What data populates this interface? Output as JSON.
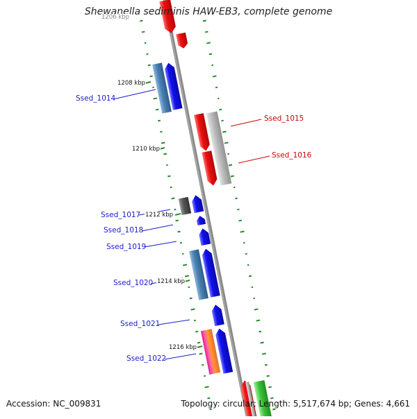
{
  "title": "Shewanella sediminis HAW-EB3, complete genome",
  "footer": {
    "accession": "Accession: NC_009831",
    "summary": "Topology: circular; Length: 5,517,674 bp; Genes: 4,661"
  },
  "kbp_labels": [
    "1206 kbp",
    "1208 kbp",
    "1210 kbp",
    "1212 kbp",
    "1214 kbp",
    "1216 kbp"
  ],
  "genes": [
    {
      "name": "Ssed_1014",
      "strand": "reverse",
      "color": "#1a1ad8"
    },
    {
      "name": "Ssed_1015",
      "strand": "forward",
      "color": "#e01010"
    },
    {
      "name": "Ssed_1016",
      "strand": "forward",
      "color": "#e01010"
    },
    {
      "name": "Ssed_1017",
      "strand": "reverse",
      "color": "#1a1ad8"
    },
    {
      "name": "Ssed_1018",
      "strand": "reverse",
      "color": "#1a1ad8"
    },
    {
      "name": "Ssed_1019",
      "strand": "reverse",
      "color": "#1a1ad8"
    },
    {
      "name": "Ssed_1020",
      "strand": "reverse",
      "color": "#1a1ad8"
    },
    {
      "name": "Ssed_1021",
      "strand": "reverse",
      "color": "#1a1ad8"
    },
    {
      "name": "Ssed_1022",
      "strand": "reverse",
      "color": "#1a1ad8"
    }
  ],
  "colors": {
    "backbone": "#8a8a8a",
    "forward_cds": "#e01010",
    "reverse_cds": "#1a1ad8",
    "reverse_cog": "#4a82b4",
    "forward_cog": "#b8b8b8",
    "gc_skew": "#2a8a2a",
    "label_forward": "#cc0000",
    "label_reverse": "#1a1acc"
  }
}
